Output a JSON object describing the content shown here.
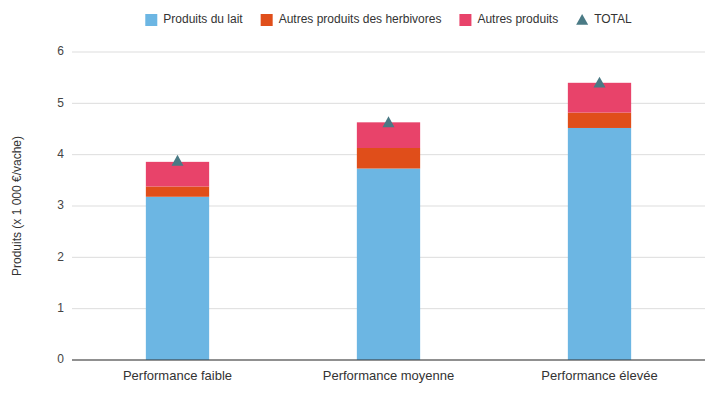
{
  "chart_data": {
    "type": "bar",
    "stacked": true,
    "categories": [
      "Performance faible",
      "Performance moyenne",
      "Performance élevée"
    ],
    "series": [
      {
        "name": "Produits du lait",
        "color": "#6CB6E3",
        "values": [
          3.18,
          3.73,
          4.52
        ]
      },
      {
        "name": "Autres produits des herbivores",
        "color": "#E04E1A",
        "values": [
          0.2,
          0.4,
          0.3
        ]
      },
      {
        "name": "Autres produits",
        "color": "#E8436A",
        "values": [
          0.48,
          0.5,
          0.58
        ]
      },
      {
        "name": "TOTAL",
        "type": "scatter",
        "marker": "triangle",
        "color": "#4A7A85",
        "values": [
          3.88,
          4.63,
          5.4
        ]
      }
    ],
    "ylabel": "Produits (x 1 000 €/vache)",
    "ylim": [
      0,
      6
    ],
    "yticks": [
      0,
      1,
      2,
      3,
      4,
      5,
      6
    ],
    "grid": true,
    "legend": "top"
  }
}
